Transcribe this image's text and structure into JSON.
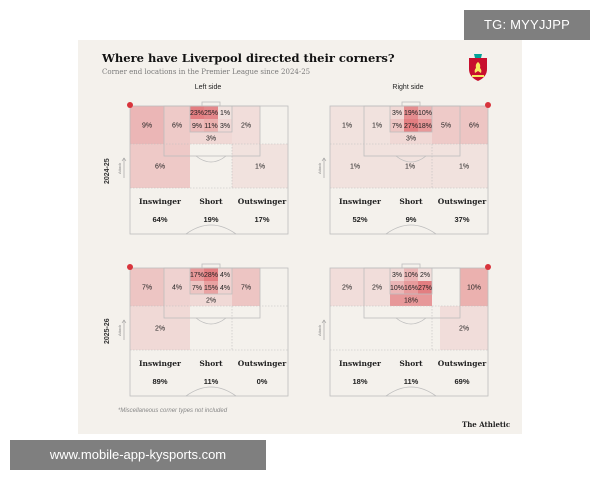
{
  "watermarks": {
    "top_right": "TG: MYYJJPP",
    "bottom_left": "www.mobile-app-kysports.com"
  },
  "header": {
    "title": "Where have Liverpool directed their corners?",
    "subtitle": "Corner end locations in the Premier League since 2024-25"
  },
  "columns": {
    "left": "Left side",
    "right": "Right side"
  },
  "seasons": [
    "2024-25",
    "2025-26"
  ],
  "attack_label": "Attack",
  "categories": [
    "Inswinger",
    "Short",
    "Outswinger"
  ],
  "colors": {
    "card": "#f4f1ec",
    "heat": "#d8343c",
    "line": "#bdbdbd",
    "flag": "#d8343c"
  },
  "footnote": "*Miscellaneous corner types not included",
  "brand": "The Athletic",
  "panels": [
    {
      "id": "p2425-left",
      "season": "2024-25",
      "side": "left",
      "flag": "left",
      "zones": [
        {
          "zone": "wide-near",
          "label": "9%",
          "heat": 0.45
        },
        {
          "zone": "nearpost",
          "label": "6%",
          "heat": 0.25
        },
        {
          "zone": "central-outer",
          "label": "2%",
          "heat": 0.08
        },
        {
          "zone": "box-edge",
          "label": "6%",
          "heat": 0.28
        },
        {
          "zone": "deep-far",
          "label": "1%",
          "heat": 0.04
        },
        {
          "zone": "six-top-1",
          "label": "23%",
          "heat": 1.0
        },
        {
          "zone": "six-top-2",
          "label": "25%",
          "heat": 0.9
        },
        {
          "zone": "six-top-3",
          "label": "1%",
          "heat": 0.03
        },
        {
          "zone": "six-mid-1",
          "label": "9%",
          "heat": 0.4
        },
        {
          "zone": "six-mid-2",
          "label": "11%",
          "heat": 0.5
        },
        {
          "zone": "six-mid-3",
          "label": "3%",
          "heat": 0.12
        },
        {
          "zone": "six-bottom",
          "label": "3%",
          "heat": 0.12
        }
      ],
      "totals": [
        "64%",
        "19%",
        "17%"
      ]
    },
    {
      "id": "p2425-right",
      "season": "2024-25",
      "side": "right",
      "flag": "right",
      "zones": [
        {
          "zone": "wide-far",
          "label": "1%",
          "heat": 0.04
        },
        {
          "zone": "farpost",
          "label": "1%",
          "heat": 0.04
        },
        {
          "zone": "nearpost-r",
          "label": "5%",
          "heat": 0.25
        },
        {
          "zone": "wide-near-r",
          "label": "6%",
          "heat": 0.3
        },
        {
          "zone": "deep-left",
          "label": "1%",
          "heat": 0.04
        },
        {
          "zone": "deep-mid",
          "label": "1%",
          "heat": 0.04
        },
        {
          "zone": "deep-right",
          "label": "1%",
          "heat": 0.04
        },
        {
          "zone": "six-top-1",
          "label": "3%",
          "heat": 0.12
        },
        {
          "zone": "six-top-2",
          "label": "19%",
          "heat": 0.85
        },
        {
          "zone": "six-top-3",
          "label": "10%",
          "heat": 0.45
        },
        {
          "zone": "six-mid-1",
          "label": "7%",
          "heat": 0.3
        },
        {
          "zone": "six-mid-2",
          "label": "27%",
          "heat": 1.0
        },
        {
          "zone": "six-mid-3",
          "label": "18%",
          "heat": 0.75
        },
        {
          "zone": "six-bottom",
          "label": "3%",
          "heat": 0.12
        }
      ],
      "totals": [
        "52%",
        "9%",
        "37%"
      ]
    },
    {
      "id": "p2526-left",
      "season": "2025-26",
      "side": "left",
      "flag": "left",
      "zones": [
        {
          "zone": "wide-near",
          "label": "7%",
          "heat": 0.3
        },
        {
          "zone": "nearpost",
          "label": "4%",
          "heat": 0.18
        },
        {
          "zone": "central-outer",
          "label": "7%",
          "heat": 0.3
        },
        {
          "zone": "box-edge",
          "label": "2%",
          "heat": 0.1
        },
        {
          "zone": "six-top-1",
          "label": "17%",
          "heat": 0.75
        },
        {
          "zone": "six-top-2",
          "label": "28%",
          "heat": 1.0
        },
        {
          "zone": "six-top-3",
          "label": "4%",
          "heat": 0.18
        },
        {
          "zone": "six-mid-1",
          "label": "7%",
          "heat": 0.3
        },
        {
          "zone": "six-mid-2",
          "label": "15%",
          "heat": 0.65
        },
        {
          "zone": "six-mid-3",
          "label": "4%",
          "heat": 0.18
        },
        {
          "zone": "six-bottom",
          "label": "2%",
          "heat": 0.1
        }
      ],
      "totals": [
        "89%",
        "11%",
        "0%"
      ]
    },
    {
      "id": "p2526-right",
      "season": "2025-26",
      "side": "right",
      "flag": "right",
      "zones": [
        {
          "zone": "wide-far",
          "label": "2%",
          "heat": 0.08
        },
        {
          "zone": "farpost",
          "label": "2%",
          "heat": 0.08
        },
        {
          "zone": "wide-near-r",
          "label": "10%",
          "heat": 0.5
        },
        {
          "zone": "deep-right",
          "label": "2%",
          "heat": 0.08
        },
        {
          "zone": "six-top-1",
          "label": "3%",
          "heat": 0.12
        },
        {
          "zone": "six-top-2",
          "label": "10%",
          "heat": 0.45
        },
        {
          "zone": "six-top-3",
          "label": "2%",
          "heat": 0.08
        },
        {
          "zone": "six-mid-1",
          "label": "10%",
          "heat": 0.45
        },
        {
          "zone": "six-mid-2",
          "label": "16%",
          "heat": 0.7
        },
        {
          "zone": "six-mid-3",
          "label": "27%",
          "heat": 1.0
        },
        {
          "zone": "six-bottom",
          "label": "18%",
          "heat": 0.75
        }
      ],
      "totals": [
        "18%",
        "11%",
        "69%"
      ]
    }
  ]
}
